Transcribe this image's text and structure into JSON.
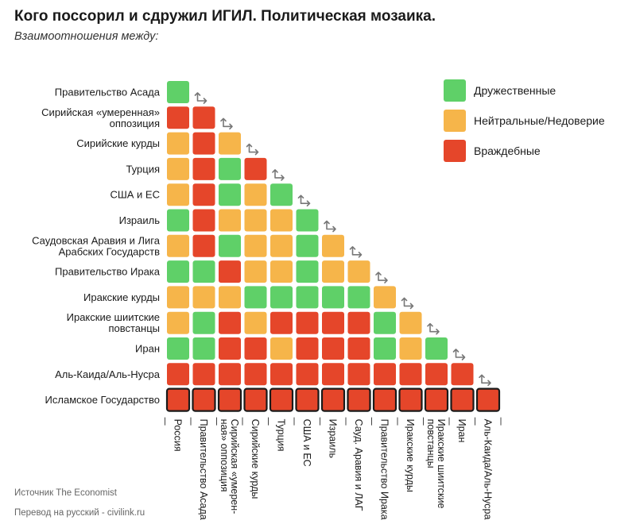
{
  "chart_data": {
    "type": "heatmap",
    "title": "Кого поссорил и сдружил ИГИЛ. Политическая мозаика.",
    "subtitle": "Взаимоотношения между:",
    "rows": [
      "Правительство Асада",
      "Сирийская «умеренная» оппозиция",
      "Сирийские курды",
      "Турция",
      "США и ЕС",
      "Израиль",
      "Саудовская Аравия и Лига Арабских Государств",
      "Правительство Ирака",
      "Иракские курды",
      "Иракские шиитские повстанцы",
      "Иран",
      "Аль-Каида/Аль-Нусра",
      "Исламское Государство"
    ],
    "row_label_lines": [
      [
        "Правительство Асада"
      ],
      [
        "Сирийская «умеренная»",
        "оппозиция"
      ],
      [
        "Сирийские курды"
      ],
      [
        "Турция"
      ],
      [
        "США и ЕС"
      ],
      [
        "Израиль"
      ],
      [
        "Саудовская Аравия и Лига",
        "Арабских Государств"
      ],
      [
        "Правительство Ирака"
      ],
      [
        "Иракские курды"
      ],
      [
        "Иракские шиитские",
        "повстанцы"
      ],
      [
        "Иран"
      ],
      [
        "Аль-Каида/Аль-Нусра"
      ],
      [
        "Исламское Государство"
      ]
    ],
    "columns": [
      "Россия",
      "Правительство Асада",
      "Сирийская «умеренная» оппозиция",
      "Сирийские курды",
      "Турция",
      "США и ЕС",
      "Израиль",
      "Сауд. Аравия и ЛАГ",
      "Правительство Ирака",
      "Иракские курды",
      "Иракские шиитские повстанцы",
      "Иран",
      "Аль-Каида/Аль-Нусра"
    ],
    "column_label_lines": [
      [
        "Россия"
      ],
      [
        "Правительство Асада"
      ],
      [
        "Сирийская «умерен-",
        "ная» оппозиция"
      ],
      [
        "Сирийские курды"
      ],
      [
        "Турция"
      ],
      [
        "США и ЕС"
      ],
      [
        "Израиль"
      ],
      [
        "Сауд. Аравия и ЛАГ"
      ],
      [
        "Правительство Ирака"
      ],
      [
        "Иракские курды"
      ],
      [
        "Иракские шиитские",
        "повстанцы"
      ],
      [
        "Иран"
      ],
      [
        "Аль-Каида/Аль-Нусра"
      ]
    ],
    "values": [
      [
        "F"
      ],
      [
        "H",
        "H"
      ],
      [
        "N",
        "H",
        "N"
      ],
      [
        "N",
        "H",
        "F",
        "H"
      ],
      [
        "N",
        "H",
        "F",
        "N",
        "F"
      ],
      [
        "F",
        "H",
        "N",
        "N",
        "N",
        "F"
      ],
      [
        "N",
        "H",
        "F",
        "N",
        "N",
        "F",
        "N"
      ],
      [
        "F",
        "F",
        "H",
        "N",
        "N",
        "F",
        "N",
        "N"
      ],
      [
        "N",
        "N",
        "N",
        "F",
        "F",
        "F",
        "F",
        "F",
        "N"
      ],
      [
        "N",
        "F",
        "H",
        "N",
        "H",
        "H",
        "H",
        "H",
        "F",
        "N"
      ],
      [
        "F",
        "F",
        "H",
        "H",
        "N",
        "H",
        "H",
        "H",
        "F",
        "N",
        "F"
      ],
      [
        "H",
        "H",
        "H",
        "H",
        "H",
        "H",
        "H",
        "H",
        "H",
        "H",
        "H",
        "H"
      ],
      [
        "H",
        "H",
        "H",
        "H",
        "H",
        "H",
        "H",
        "H",
        "H",
        "H",
        "H",
        "H",
        "H"
      ]
    ],
    "legend": [
      {
        "code": "F",
        "label": "Дружественные",
        "color": "#5fd068"
      },
      {
        "code": "N",
        "label": "Нейтральные/Недоверие",
        "color": "#f6b54a"
      },
      {
        "code": "H",
        "label": "Враждебные",
        "color": "#e5462a"
      }
    ]
  },
  "footer": {
    "source": "Источник The Economist",
    "credit": "Перевод на русский - civilink.ru"
  }
}
